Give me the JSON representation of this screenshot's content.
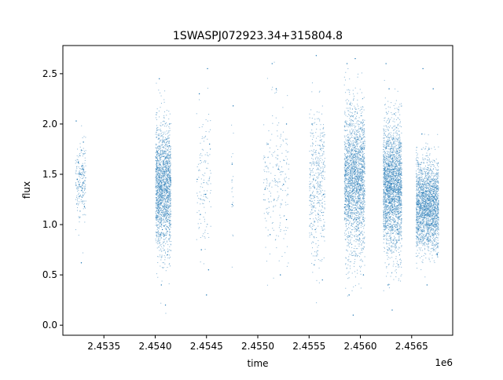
{
  "chart_data": {
    "type": "scatter",
    "title": "1SWASPJ072923.34+315804.8",
    "xlabel": "time",
    "ylabel": "flux",
    "x_offset_label": "1e6",
    "xlim": [
      2.4531,
      2.4569
    ],
    "ylim": [
      -0.1,
      2.78
    ],
    "x_ticks": [
      2.4535,
      2.454,
      2.4545,
      2.455,
      2.4555,
      2.456,
      2.4565
    ],
    "x_tick_labels": [
      "2.4535",
      "2.4540",
      "2.4545",
      "2.4550",
      "2.4555",
      "2.4560",
      "2.4565"
    ],
    "y_ticks": [
      0.0,
      0.5,
      1.0,
      1.5,
      2.0,
      2.5
    ],
    "y_tick_labels": [
      "0.0",
      "0.5",
      "1.0",
      "1.5",
      "2.0",
      "2.5"
    ],
    "grid": false,
    "marker_color": "#1f77b4",
    "series": [
      {
        "points": [
          [
            2.45324,
            1.45
          ],
          [
            2.45325,
            1.62
          ],
          [
            2.45326,
            1.28
          ],
          [
            2.45327,
            1.5
          ],
          [
            2.45328,
            1.74
          ],
          [
            2.45329,
            1.36
          ],
          [
            2.4533,
            1.55
          ],
          [
            2.45331,
            1.18
          ],
          [
            2.45323,
            2.03
          ],
          [
            2.45328,
            0.62
          ],
          [
            2.4533,
            1.82
          ],
          [
            2.45326,
            1.4
          ],
          [
            2.45401,
            1.55
          ],
          [
            2.45403,
            1.2
          ],
          [
            2.45405,
            1.7
          ],
          [
            2.45407,
            0.95
          ],
          [
            2.45409,
            1.4
          ],
          [
            2.45411,
            1.85
          ],
          [
            2.45413,
            1.1
          ],
          [
            2.45404,
            2.45
          ],
          [
            2.45406,
            0.4
          ],
          [
            2.4541,
            0.2
          ],
          [
            2.45414,
            2.0
          ],
          [
            2.45408,
            1.6
          ],
          [
            2.45412,
            0.7
          ],
          [
            2.45441,
            1.45
          ],
          [
            2.45443,
            2.3
          ],
          [
            2.45445,
            0.75
          ],
          [
            2.45449,
            1.3
          ],
          [
            2.45451,
            2.55
          ],
          [
            2.45452,
            0.55
          ],
          [
            2.45453,
            1.8
          ],
          [
            2.4545,
            0.3
          ],
          [
            2.45444,
            1.1
          ],
          [
            2.45475,
            1.6
          ],
          [
            2.45475,
            1.2
          ],
          [
            2.45476,
            2.18
          ],
          [
            2.45507,
            1.35
          ],
          [
            2.4551,
            1.8
          ],
          [
            2.45512,
            0.9
          ],
          [
            2.45514,
            2.6
          ],
          [
            2.45516,
            1.25
          ],
          [
            2.4552,
            1.55
          ],
          [
            2.45522,
            0.5
          ],
          [
            2.45525,
            1.4
          ],
          [
            2.45528,
            2.0
          ],
          [
            2.45528,
            1.05
          ],
          [
            2.45518,
            2.35
          ],
          [
            2.45551,
            1.5
          ],
          [
            2.45553,
            2.0
          ],
          [
            2.45555,
            0.6
          ],
          [
            2.45557,
            2.68
          ],
          [
            2.45559,
            1.1
          ],
          [
            2.45561,
            1.75
          ],
          [
            2.45563,
            0.45
          ],
          [
            2.45564,
            1.3
          ],
          [
            2.45556,
            0.95
          ],
          [
            2.45585,
            1.2
          ],
          [
            2.45587,
            2.6
          ],
          [
            2.45589,
            0.3
          ],
          [
            2.45591,
            1.6
          ],
          [
            2.45593,
            0.1
          ],
          [
            2.45595,
            2.65
          ],
          [
            2.45597,
            1.4
          ],
          [
            2.45599,
            0.9
          ],
          [
            2.45601,
            1.85
          ],
          [
            2.45603,
            0.5
          ],
          [
            2.4559,
            2.2
          ],
          [
            2.45596,
            1.05
          ],
          [
            2.45623,
            1.4
          ],
          [
            2.45625,
            2.6
          ],
          [
            2.45627,
            0.4
          ],
          [
            2.45629,
            1.75
          ],
          [
            2.45631,
            0.15
          ],
          [
            2.45633,
            2.1
          ],
          [
            2.45635,
            1.1
          ],
          [
            2.45637,
            0.6
          ],
          [
            2.45639,
            1.5
          ],
          [
            2.45628,
            2.35
          ],
          [
            2.45636,
            0.95
          ],
          [
            2.45655,
            1.2
          ],
          [
            2.45657,
            1.6
          ],
          [
            2.45659,
            0.85
          ],
          [
            2.45661,
            2.55
          ],
          [
            2.45663,
            1.4
          ],
          [
            2.45665,
            0.4
          ],
          [
            2.45667,
            1.75
          ],
          [
            2.45669,
            1.0
          ],
          [
            2.45671,
            2.35
          ],
          [
            2.45673,
            1.25
          ],
          [
            2.45675,
            0.7
          ],
          [
            2.4566,
            1.9
          ]
        ]
      }
    ],
    "clusters": [
      {
        "x": [
          2.45322,
          2.45332
        ],
        "center": 1.45,
        "spread": 0.18,
        "n": 220
      },
      {
        "x": [
          2.454,
          2.45415
        ],
        "center": 1.38,
        "spread": 0.3,
        "n": 1800
      },
      {
        "x": [
          2.4544,
          2.45454
        ],
        "center": 1.45,
        "spread": 0.38,
        "n": 130
      },
      {
        "x": [
          2.45474,
          2.45476
        ],
        "center": 1.45,
        "spread": 0.3,
        "n": 20
      },
      {
        "x": [
          2.45505,
          2.4553
        ],
        "center": 1.45,
        "spread": 0.35,
        "n": 220
      },
      {
        "x": [
          2.4555,
          2.45565
        ],
        "center": 1.42,
        "spread": 0.38,
        "n": 450
      },
      {
        "x": [
          2.45584,
          2.45604
        ],
        "center": 1.45,
        "spread": 0.35,
        "n": 2200
      },
      {
        "x": [
          2.45622,
          2.4564
        ],
        "center": 1.38,
        "spread": 0.32,
        "n": 2400
      },
      {
        "x": [
          2.45654,
          2.45676
        ],
        "center": 1.2,
        "spread": 0.22,
        "n": 2200
      }
    ]
  }
}
